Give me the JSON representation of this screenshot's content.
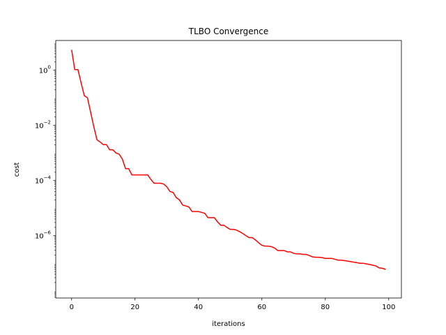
{
  "chart_data": {
    "type": "line",
    "title": "TLBO Convergence",
    "xlabel": "iterations",
    "ylabel": "cost",
    "xlim": [
      -5,
      104
    ],
    "ylim": [
      5.5e-09,
      12
    ],
    "yscale": "log",
    "grid": false,
    "x_ticks": [
      0,
      20,
      40,
      60,
      80,
      100
    ],
    "y_ticks": [
      {
        "value": 1,
        "base": "10",
        "exp": "0"
      },
      {
        "value": 0.01,
        "base": "10",
        "exp": "−2"
      },
      {
        "value": 0.0001,
        "base": "10",
        "exp": "−4"
      },
      {
        "value": 1e-06,
        "base": "10",
        "exp": "−6"
      }
    ],
    "series": [
      {
        "color": "#ff0000",
        "x": [
          0,
          1,
          2,
          3,
          4,
          5,
          6,
          7,
          8,
          9,
          10,
          11,
          12,
          13,
          14,
          15,
          16,
          17,
          18,
          19,
          20,
          21,
          22,
          23,
          24,
          25,
          26,
          27,
          28,
          29,
          30,
          31,
          32,
          33,
          34,
          35,
          36,
          37,
          38,
          39,
          40,
          41,
          42,
          43,
          44,
          45,
          46,
          47,
          48,
          49,
          50,
          51,
          52,
          53,
          54,
          55,
          56,
          57,
          58,
          59,
          60,
          61,
          62,
          63,
          64,
          65,
          66,
          67,
          68,
          69,
          70,
          71,
          72,
          73,
          74,
          75,
          76,
          77,
          78,
          79,
          80,
          81,
          82,
          83,
          84,
          85,
          86,
          87,
          88,
          89,
          90,
          91,
          92,
          93,
          94,
          95,
          96,
          97,
          98,
          99
        ],
        "y": [
          5.5,
          1.05,
          1.05,
          0.35,
          0.12,
          0.1,
          0.03,
          0.009,
          0.003,
          0.0025,
          0.002,
          0.002,
          0.0013,
          0.0013,
          0.001,
          0.0009,
          0.0006,
          0.00027,
          0.00027,
          0.00016,
          0.00016,
          0.00016,
          0.00016,
          0.00016,
          0.00016,
          0.00011,
          8e-05,
          8e-05,
          8e-05,
          7.5e-05,
          6e-05,
          4e-05,
          3.7e-05,
          2.4e-05,
          2e-05,
          1.3e-05,
          1.2e-05,
          1.1e-05,
          7.5e-06,
          7.5e-06,
          7.5e-06,
          7e-06,
          6.5e-06,
          4.5e-06,
          4.5e-06,
          4.5e-06,
          3.2e-06,
          2.4e-06,
          2.4e-06,
          2e-06,
          1.7e-06,
          1.7e-06,
          1.6e-06,
          1.4e-06,
          1.2e-06,
          1e-06,
          8.5e-07,
          8.5e-07,
          7e-07,
          5.5e-07,
          4.5e-07,
          4.2e-07,
          4.2e-07,
          4e-07,
          3.6e-07,
          2.9e-07,
          2.9e-07,
          2.9e-07,
          2.6e-07,
          2.6e-07,
          2.3e-07,
          2.2e-07,
          2.2e-07,
          2.1e-07,
          2.1e-07,
          1.9e-07,
          1.7e-07,
          1.65e-07,
          1.65e-07,
          1.6e-07,
          1.5e-07,
          1.5e-07,
          1.5e-07,
          1.4e-07,
          1.3e-07,
          1.3e-07,
          1.25e-07,
          1.2e-07,
          1.15e-07,
          1.1e-07,
          1.05e-07,
          1e-07,
          1e-07,
          9.5e-08,
          9e-08,
          8.5e-08,
          8e-08,
          6.8e-08,
          6.6e-08,
          6e-08
        ]
      }
    ]
  }
}
